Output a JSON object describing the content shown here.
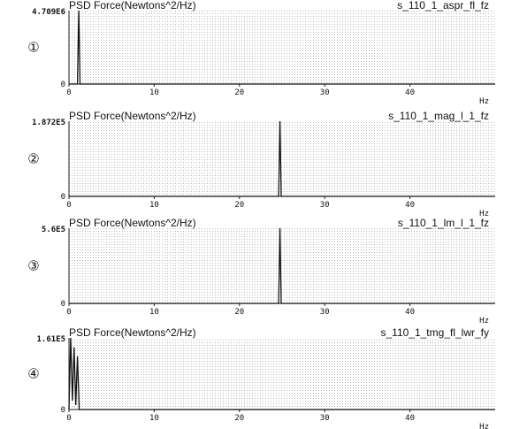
{
  "chart_data": [
    {
      "type": "line",
      "title": "PSD Force(Newtons^2/Hz)",
      "signal": "s_110_1_aspr_fl_fz",
      "badge": "①",
      "ymax_label": "4.709E6",
      "ylim": [
        0,
        4709000
      ],
      "xlim": [
        0,
        50
      ],
      "xticks": [
        0,
        10,
        20,
        30,
        40
      ],
      "xunit": "Hz",
      "series": [
        {
          "x": [
            0,
            1.0,
            1.15,
            1.3,
            50
          ],
          "y": [
            0,
            0,
            4709000,
            0,
            0
          ]
        }
      ]
    },
    {
      "type": "line",
      "title": "PSD Force(Newtons^2/Hz)",
      "signal": "s_110_1_mag_l_1_fz",
      "badge": "②",
      "ymax_label": "1.872E5",
      "ylim": [
        0,
        187200
      ],
      "xlim": [
        0,
        50
      ],
      "xticks": [
        0,
        10,
        20,
        30,
        40
      ],
      "xunit": "Hz",
      "series": [
        {
          "x": [
            0,
            24.6,
            24.75,
            24.9,
            50
          ],
          "y": [
            0,
            0,
            187200,
            0,
            0
          ]
        }
      ]
    },
    {
      "type": "line",
      "title": "PSD Force(Newtons^2/Hz)",
      "signal": "s_110_1_lm_l_1_fz",
      "badge": "③",
      "ymax_label": "5.6E5",
      "ylim": [
        0,
        560000
      ],
      "xlim": [
        0,
        50
      ],
      "xticks": [
        0,
        10,
        20,
        30,
        40
      ],
      "xunit": "Hz",
      "series": [
        {
          "x": [
            0,
            24.6,
            24.75,
            24.9,
            50
          ],
          "y": [
            0,
            0,
            560000,
            0,
            0
          ]
        }
      ]
    },
    {
      "type": "line",
      "title": "PSD Force(Newtons^2/Hz)",
      "signal": "s_110_1_tmg_fl_lwr_fy",
      "badge": "④",
      "ymax_label": "1.61E5",
      "ylim": [
        0,
        161000
      ],
      "xlim": [
        0,
        50
      ],
      "xticks": [
        0,
        10,
        20,
        30,
        40
      ],
      "xunit": "Hz",
      "series": [
        {
          "x": [
            0,
            0.2,
            0.4,
            0.6,
            0.8,
            1.0,
            1.2,
            50
          ],
          "y": [
            0,
            161000,
            20000,
            140000,
            10000,
            120000,
            0,
            0
          ]
        }
      ]
    }
  ]
}
